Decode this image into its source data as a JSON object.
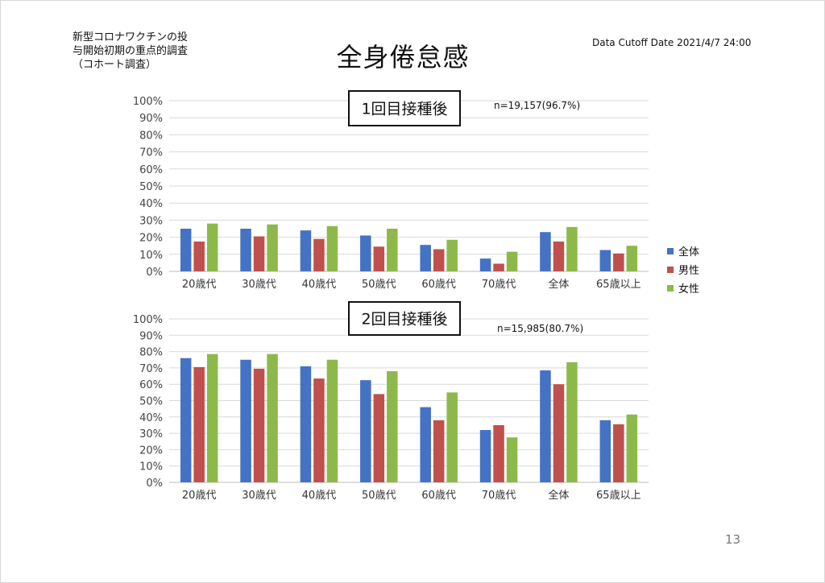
{
  "header": {
    "subtitle_lines": [
      "新型コロナワクチンの投",
      "与開始初期の重点的調査",
      "（コホート調査）"
    ],
    "title": "全身倦怠感",
    "cutoff": "Data Cutoff Date 2021/4/7 24:00"
  },
  "page_number": "13",
  "colors": {
    "series_1": "#4472c4",
    "series_2": "#c0504d",
    "series_3": "#8db94a"
  },
  "chart_data": [
    {
      "type": "bar",
      "title": "1回目接種後",
      "sample_size": "n=19,157(96.7%)",
      "categories": [
        "20歳代",
        "30歳代",
        "40歳代",
        "50歳代",
        "60歳代",
        "70歳代",
        "全体",
        "65歳以上"
      ],
      "y_ticks": [
        "0%",
        "10%",
        "20%",
        "30%",
        "40%",
        "50%",
        "60%",
        "70%",
        "80%",
        "90%",
        "100%"
      ],
      "ylim": [
        0,
        100
      ],
      "grid": true,
      "legend_position": "right",
      "series": [
        {
          "name": "全体",
          "values": [
            25,
            25,
            24,
            21,
            15.5,
            7.5,
            23,
            12.5
          ]
        },
        {
          "name": "男性",
          "values": [
            17.5,
            20.5,
            19,
            14.5,
            13,
            4.5,
            17.5,
            10.5
          ]
        },
        {
          "name": "女性",
          "values": [
            28,
            27.5,
            26.5,
            25,
            18.5,
            11.5,
            26,
            15
          ]
        }
      ]
    },
    {
      "type": "bar",
      "title": "2回目接種後",
      "sample_size": "n=15,985(80.7%)",
      "categories": [
        "20歳代",
        "30歳代",
        "40歳代",
        "50歳代",
        "60歳代",
        "70歳代",
        "全体",
        "65歳以上"
      ],
      "y_ticks": [
        "0%",
        "10%",
        "20%",
        "30%",
        "40%",
        "50%",
        "60%",
        "70%",
        "80%",
        "90%",
        "100%"
      ],
      "ylim": [
        0,
        100
      ],
      "grid": true,
      "series": [
        {
          "name": "全体",
          "values": [
            76,
            75,
            71,
            62.5,
            46,
            32,
            68.5,
            38
          ]
        },
        {
          "name": "男性",
          "values": [
            70.5,
            69.5,
            63.5,
            54,
            38,
            35,
            60,
            35.5
          ]
        },
        {
          "name": "女性",
          "values": [
            78.5,
            78.5,
            75,
            68,
            55,
            27.5,
            73.5,
            41.5
          ]
        }
      ]
    }
  ]
}
